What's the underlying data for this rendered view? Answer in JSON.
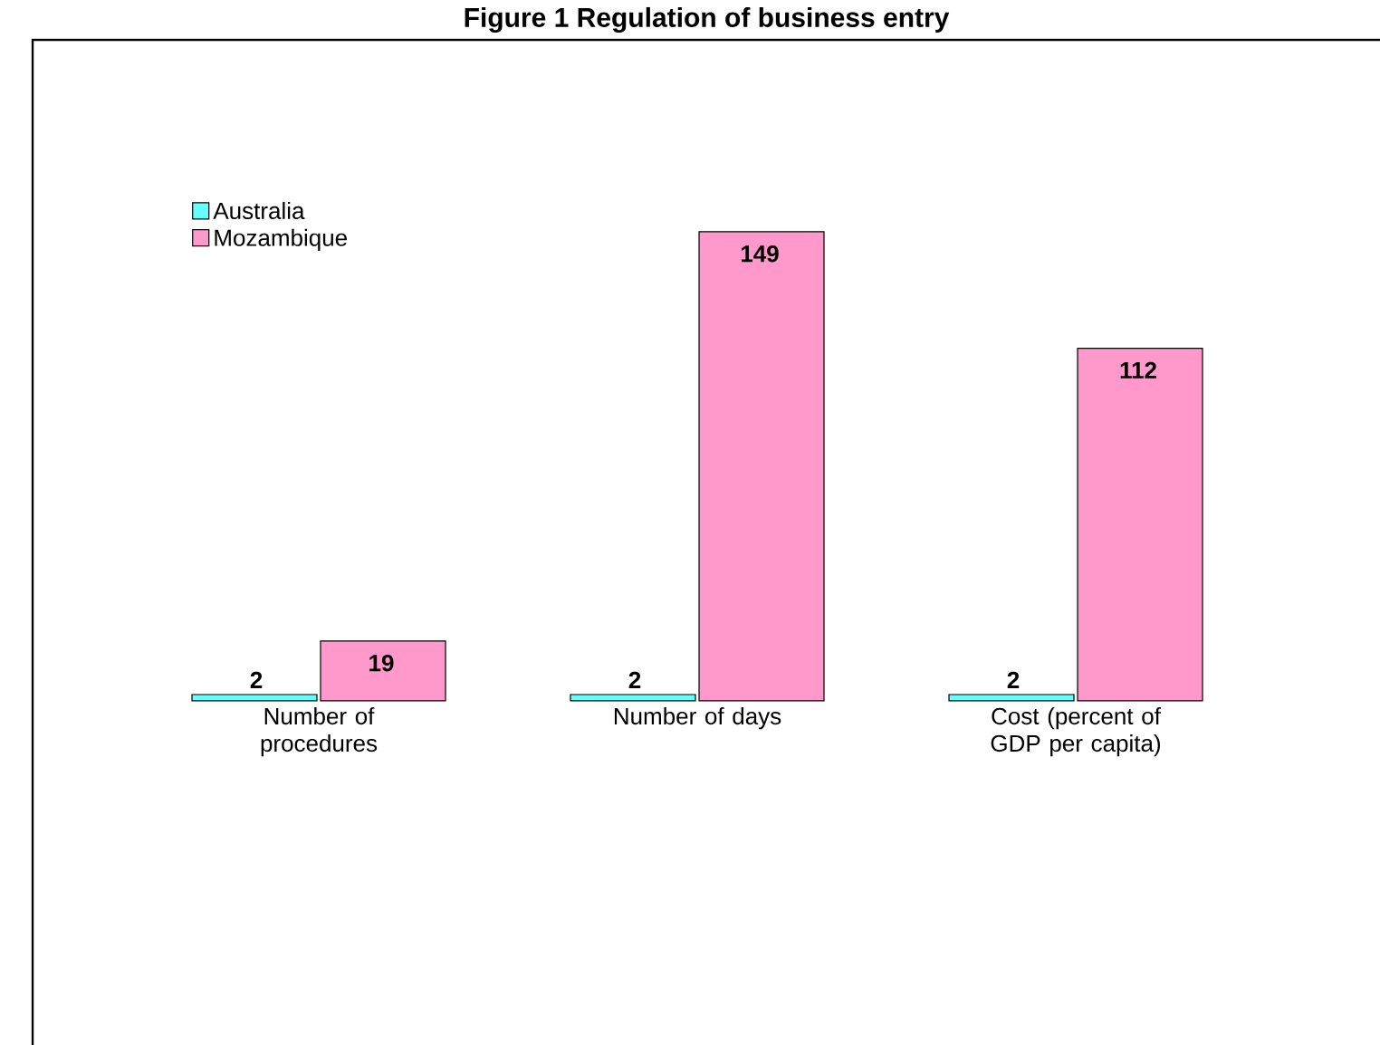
{
  "chart_data": {
    "type": "bar",
    "title": "Figure 1 Regulation of business entry",
    "categories": [
      "Number of procedures",
      "Number of days",
      "Cost (percent of GDP per capita)"
    ],
    "series": [
      {
        "name": "Australia",
        "color": "#66ffff",
        "values": [
          2,
          2,
          2
        ]
      },
      {
        "name": "Mozambique",
        "color": "#ff99cc",
        "values": [
          19,
          149,
          112
        ]
      }
    ],
    "data_labels": true,
    "legend": "top left"
  }
}
